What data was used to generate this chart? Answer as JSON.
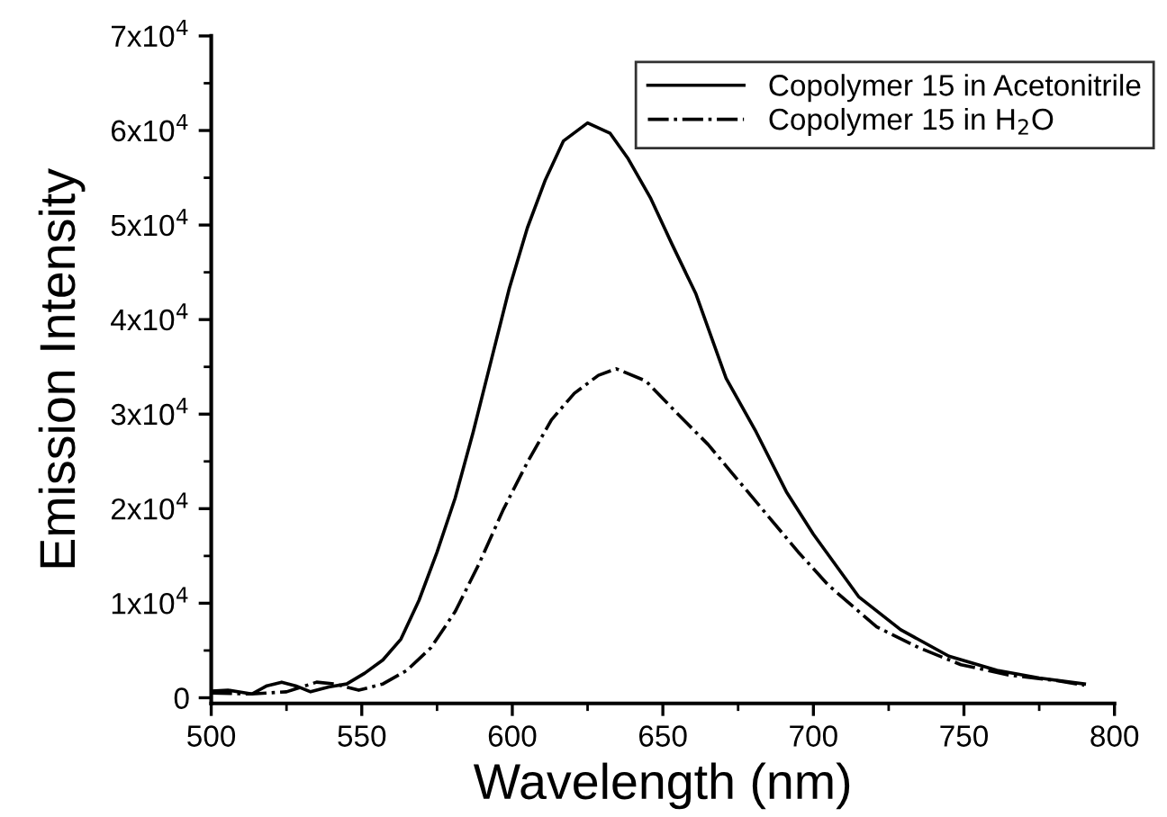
{
  "chart_data": {
    "type": "line",
    "xlabel": "Wavelength (nm)",
    "ylabel": "Emission Intensity",
    "xlim": [
      500,
      800
    ],
    "ylim": [
      -600,
      70000
    ],
    "xticks": [
      500,
      {
        "value": 525,
        "label": null
      },
      550,
      {
        "value": 575,
        "label": null
      },
      600,
      {
        "value": 625,
        "label": null
      },
      650,
      {
        "value": 675,
        "label": null
      },
      700,
      {
        "value": 725,
        "label": null
      },
      750,
      {
        "value": 775,
        "label": null
      },
      800
    ],
    "yticks": [
      0,
      {
        "value": 5000,
        "label": null
      },
      {
        "value": 10000,
        "label": "1x10$^{4}$"
      },
      {
        "value": 15000,
        "label": null
      },
      {
        "value": 20000,
        "label": "2x10$^{4}$"
      },
      {
        "value": 25000,
        "label": null
      },
      {
        "value": 30000,
        "label": "3x10$^{4}$"
      },
      {
        "value": 35000,
        "label": null
      },
      {
        "value": 40000,
        "label": "4x10$^{4}$"
      },
      {
        "value": 45000,
        "label": null
      },
      {
        "value": 50000,
        "label": "5x10$^{4}$"
      },
      {
        "value": 55000,
        "label": null
      },
      {
        "value": 60000,
        "label": "6x10$^{4}$"
      },
      {
        "value": 65000,
        "label": null
      },
      {
        "value": 70000,
        "label": "7x10$^{4}$"
      }
    ],
    "grid": false,
    "legend": "top right",
    "marker": "none",
    "series": [
      {
        "name": "Copolymer 15 in Acetonitrile",
        "color": "#000000",
        "line_style": "solid",
        "x": [
          500,
          505.6,
          513.5,
          518.5,
          523.4,
          528,
          533,
          539,
          545,
          551,
          557,
          563,
          569,
          575,
          581,
          587,
          593,
          599,
          605,
          611,
          617,
          625,
          632.5,
          638.5,
          646,
          653,
          661,
          671,
          681,
          691,
          700,
          715,
          729,
          745,
          761,
          775,
          790
        ],
        "values": [
          700,
          800,
          400,
          1270,
          1650,
          1270,
          630,
          1140,
          1460,
          2600,
          4000,
          6200,
          10300,
          15400,
          21100,
          28100,
          35700,
          43300,
          49700,
          54800,
          58900,
          60800,
          59700,
          57000,
          52800,
          48000,
          42700,
          33800,
          28100,
          21800,
          17300,
          10700,
          7200,
          4400,
          2900,
          2100,
          1460
        ]
      },
      {
        "name": "Copolymer 15 in H$_{2}$O",
        "color": "#000000",
        "line_style": "dashdot",
        "x": [
          500,
          513.5,
          525,
          535,
          541,
          549,
          557,
          565,
          573,
          581,
          589,
          597,
          605,
          613,
          620.6,
          628.6,
          634.5,
          644.4,
          655,
          665,
          675,
          685,
          695,
          705,
          721,
          735,
          749,
          765,
          781,
          790
        ],
        "values": [
          500,
          400,
          630,
          1650,
          1460,
          800,
          1460,
          2900,
          5300,
          9100,
          14200,
          19900,
          24900,
          29400,
          32200,
          34100,
          34800,
          33500,
          30000,
          26800,
          23000,
          19200,
          15400,
          11900,
          7500,
          5300,
          3500,
          2400,
          1800,
          1330
        ]
      }
    ]
  }
}
